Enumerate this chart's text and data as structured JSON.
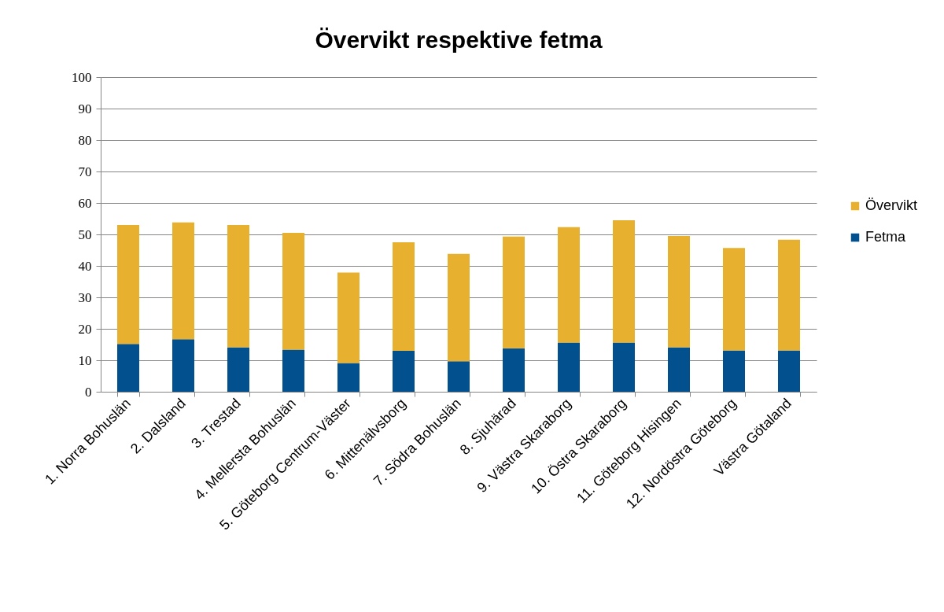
{
  "chart_data": {
    "type": "bar",
    "title": "Övervikt respektive fetma",
    "categories": [
      "1. Norra Bohuslän",
      "2. Dalsland",
      "3. Trestad",
      "4. Mellersta Bohuslän",
      "5. Göteborg Centrum-Väster",
      "6. Mittenälvsborg",
      "7. Södra Bohuslän",
      "8. Sjuhärad",
      "9. Västra Skaraborg",
      "10. Östra Skaraborg",
      "11. Göteborg Hisingen",
      "12. Nordöstra Göteborg",
      "Västra Götaland"
    ],
    "stacked": true,
    "series": [
      {
        "name": "Fetma",
        "color": "#03508f",
        "values": [
          15.2,
          16.7,
          14.1,
          13.4,
          9.1,
          13.0,
          9.7,
          13.8,
          15.6,
          15.6,
          14.1,
          13.1,
          13.1
        ]
      },
      {
        "name": "Övervikt",
        "color": "#e8b02f",
        "values": [
          37.8,
          37.1,
          38.9,
          37.1,
          28.8,
          34.5,
          34.1,
          35.5,
          36.7,
          38.9,
          35.4,
          32.6,
          35.2
        ]
      }
    ],
    "ylim": [
      0,
      100
    ],
    "yticks": [
      0,
      10,
      20,
      30,
      40,
      50,
      60,
      70,
      80,
      90,
      100
    ],
    "grid": "y",
    "legend": "right"
  }
}
